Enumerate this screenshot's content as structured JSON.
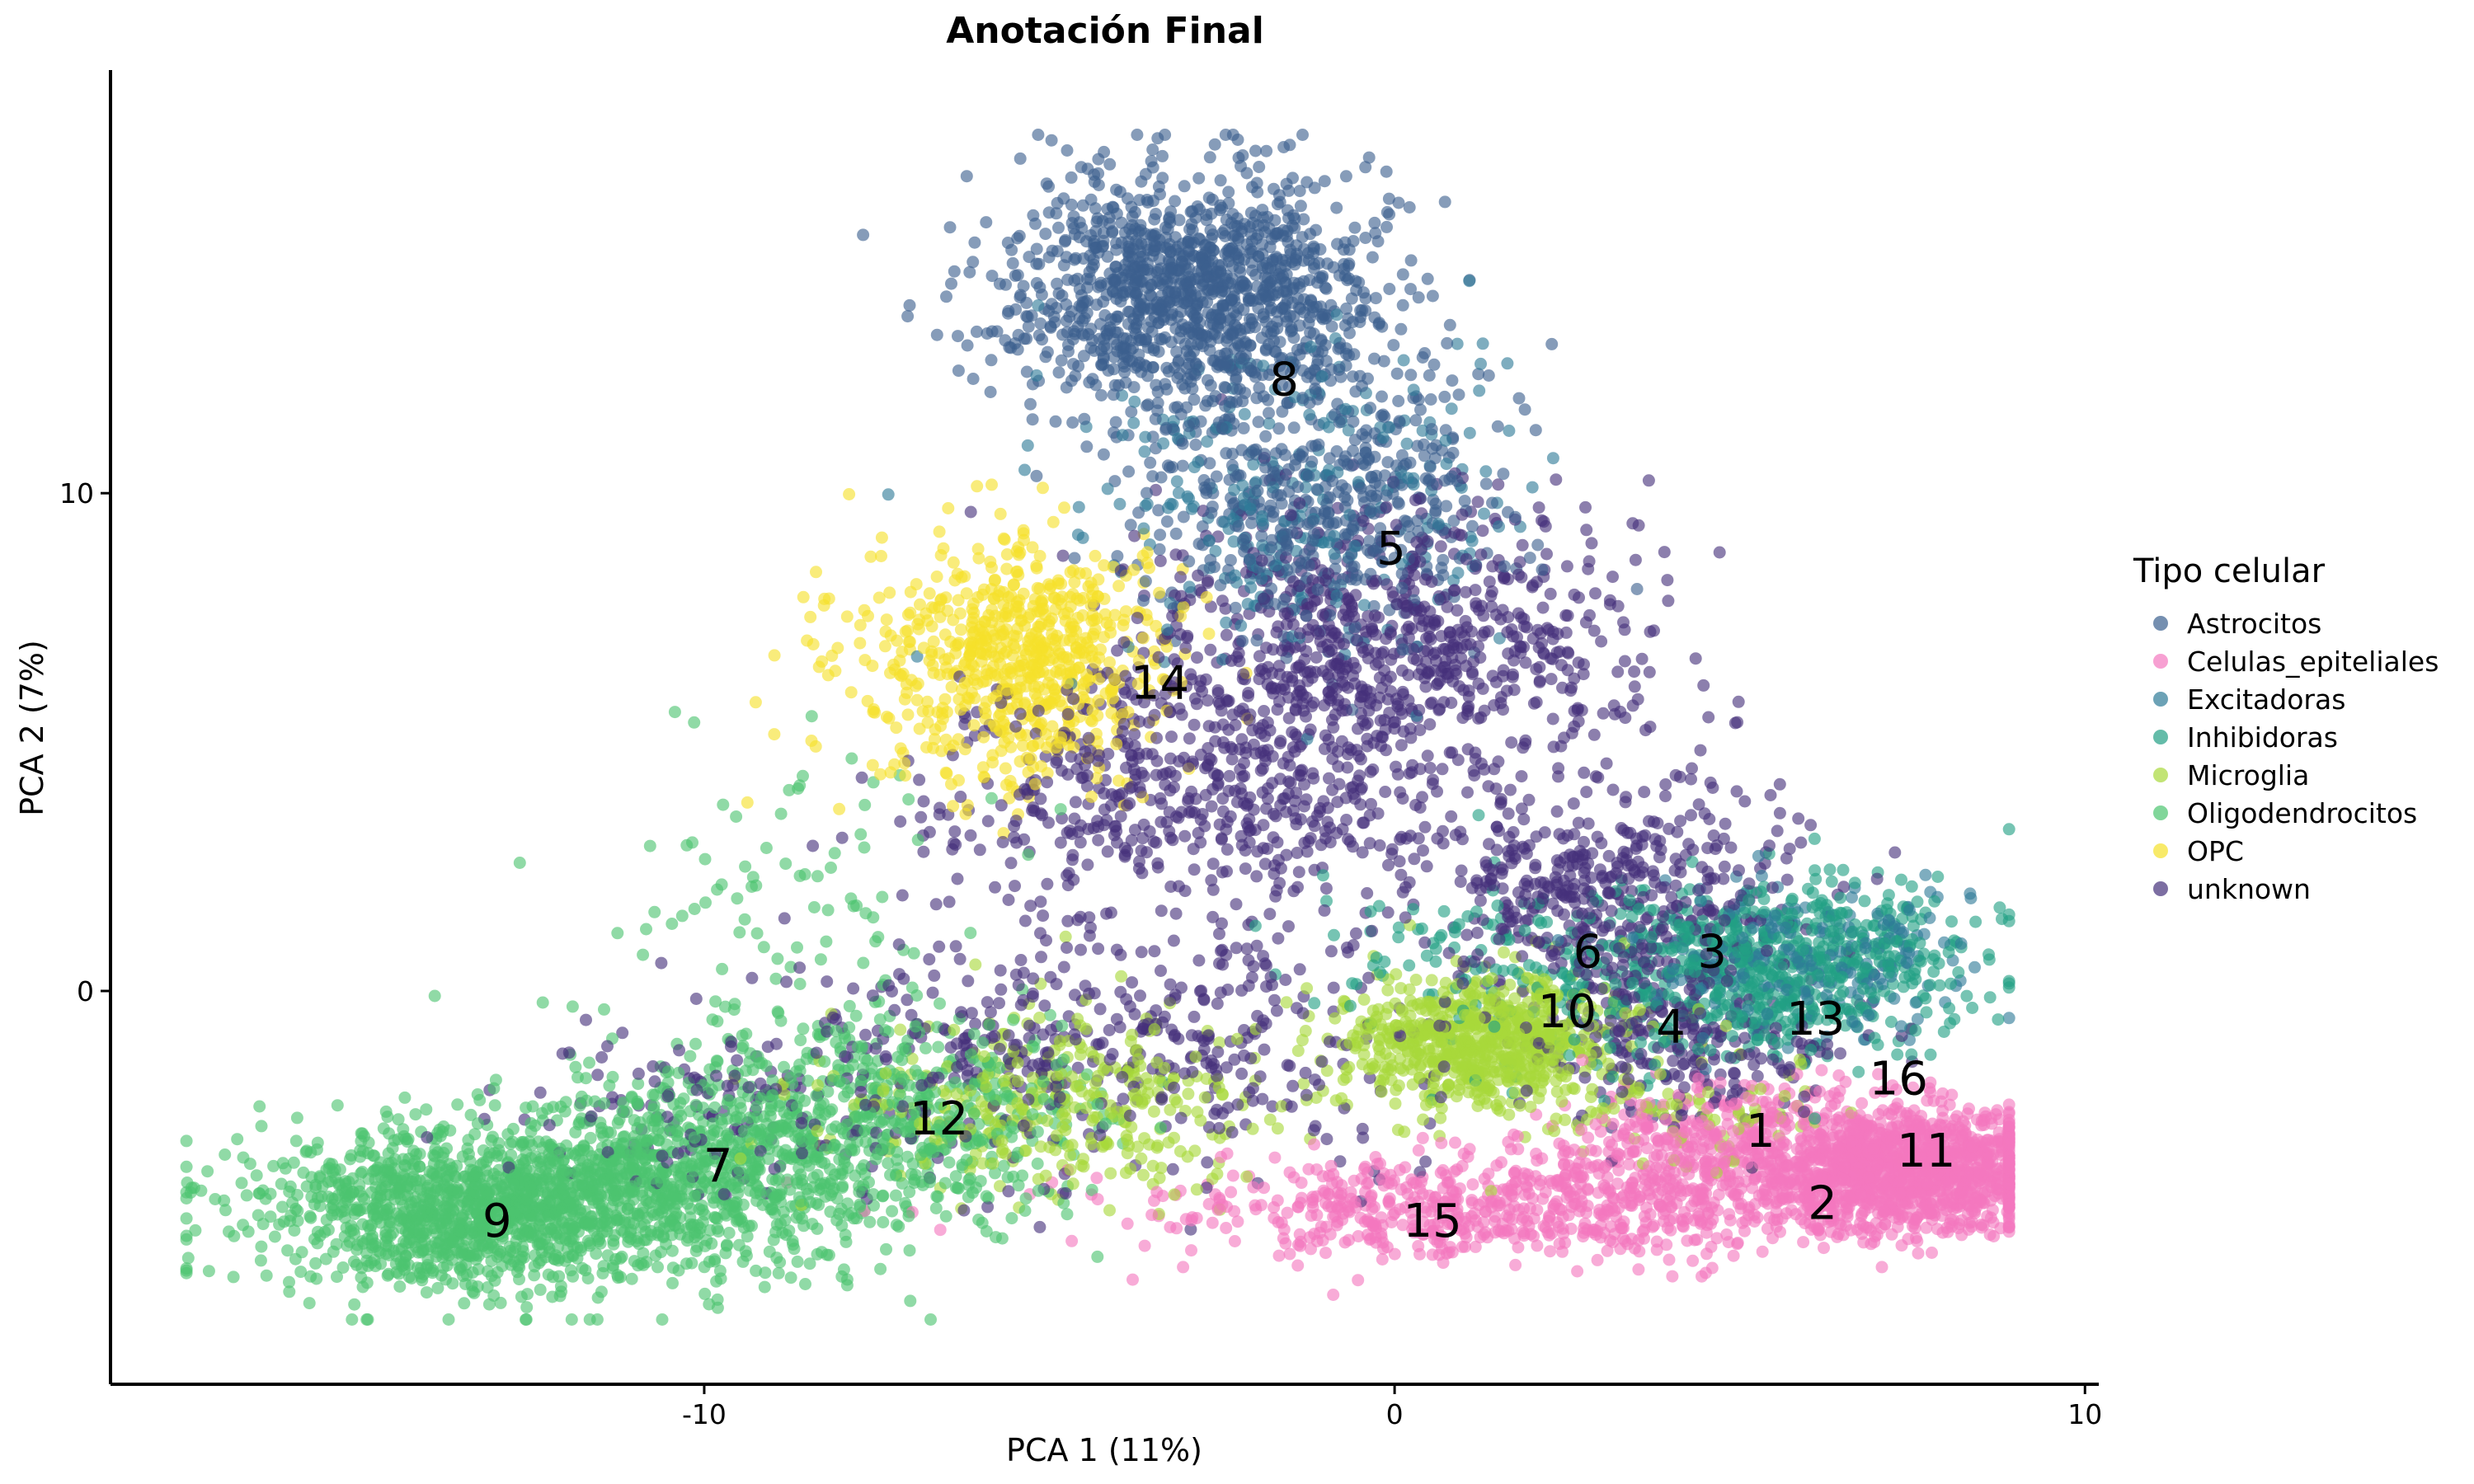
{
  "chart_data": {
    "type": "scatter",
    "title": "Anotación Final",
    "xlabel": "PCA 1 (11%)",
    "ylabel": "PCA 2 (7%)",
    "xlim": [
      -18.6,
      10.2
    ],
    "ylim": [
      -7.9,
      18.5
    ],
    "xticks": [
      -10,
      0,
      10
    ],
    "yticks": [
      0,
      10
    ],
    "xtick_labels": [
      "-10",
      "0",
      "10"
    ],
    "ytick_labels": [
      "0",
      "10"
    ],
    "grid": false,
    "legend": {
      "title": "Tipo celular",
      "position": "right"
    },
    "series": [
      {
        "name": "Astrocitos",
        "color": "#3B5F8E",
        "clusters": [
          {
            "center": [
              -3.0,
              14.0
            ],
            "sd": [
              1.3,
              1.2
            ],
            "n": 1200
          },
          {
            "center": [
              -1.0,
              10.0
            ],
            "sd": [
              1.3,
              1.5
            ],
            "n": 500
          }
        ]
      },
      {
        "name": "Celulas_epiteliales",
        "color": "#F478BF",
        "clusters": [
          {
            "center": [
              7.5,
              -3.6
            ],
            "sd": [
              1.0,
              0.6
            ],
            "n": 1100
          },
          {
            "center": [
              5.0,
              -3.3
            ],
            "sd": [
              1.5,
              0.7
            ],
            "n": 550
          },
          {
            "center": [
              1.5,
              -4.4
            ],
            "sd": [
              2.6,
              0.5
            ],
            "n": 650
          }
        ]
      },
      {
        "name": "Excitadoras",
        "color": "#2E7A97",
        "clusters": [
          {
            "center": [
              -1.5,
              9.8
            ],
            "sd": [
              1.6,
              1.6
            ],
            "n": 260
          },
          {
            "center": [
              6.0,
              0.6
            ],
            "sd": [
              1.2,
              0.8
            ],
            "n": 220
          }
        ]
      },
      {
        "name": "Inhibidoras",
        "color": "#22A085",
        "clusters": [
          {
            "center": [
              5.5,
              0.5
            ],
            "sd": [
              1.5,
              0.9
            ],
            "n": 650
          },
          {
            "center": [
              2.0,
              0.2
            ],
            "sd": [
              1.5,
              1.0
            ],
            "n": 150
          }
        ]
      },
      {
        "name": "Microglia",
        "color": "#A8D93A",
        "clusters": [
          {
            "center": [
              1.3,
              -1.0
            ],
            "sd": [
              1.0,
              0.7
            ],
            "n": 750
          },
          {
            "center": [
              -5.0,
              -2.3
            ],
            "sd": [
              1.6,
              0.9
            ],
            "n": 350
          },
          {
            "center": [
              4.5,
              -2.5
            ],
            "sd": [
              1.0,
              0.6
            ],
            "n": 80
          }
        ]
      },
      {
        "name": "Oligodendrocitos",
        "color": "#4CC46F",
        "clusters": [
          {
            "center": [
              -13.3,
              -4.4
            ],
            "sd": [
              1.6,
              0.8
            ],
            "n": 1300
          },
          {
            "center": [
              -10.0,
              -3.5
            ],
            "sd": [
              1.6,
              1.0
            ],
            "n": 800
          },
          {
            "center": [
              -7.0,
              -2.5
            ],
            "sd": [
              1.4,
              1.1
            ],
            "n": 450
          },
          {
            "center": [
              -9.0,
              1.5
            ],
            "sd": [
              1.5,
              1.6
            ],
            "n": 90
          }
        ]
      },
      {
        "name": "OPC",
        "color": "#F5E12A",
        "clusters": [
          {
            "center": [
              -5.3,
              6.7
            ],
            "sd": [
              1.0,
              1.2
            ],
            "n": 650
          },
          {
            "center": [
              -7.5,
              6.5
            ],
            "sd": [
              0.8,
              1.2
            ],
            "n": 60
          }
        ]
      },
      {
        "name": "unknown",
        "color": "#45307A",
        "clusters": [
          {
            "center": [
              0.0,
              7.0
            ],
            "sd": [
              1.9,
              1.5
            ],
            "n": 800
          },
          {
            "center": [
              -3.0,
              4.0
            ],
            "sd": [
              1.8,
              1.2
            ],
            "n": 500
          },
          {
            "center": [
              3.0,
              2.0
            ],
            "sd": [
              1.5,
              1.1
            ],
            "n": 450
          },
          {
            "center": [
              -4.0,
              -1.0
            ],
            "sd": [
              2.5,
              1.3
            ],
            "n": 450
          },
          {
            "center": [
              4.0,
              -1.0
            ],
            "sd": [
              1.2,
              0.8
            ],
            "n": 250
          },
          {
            "center": [
              -10.0,
              -2.5
            ],
            "sd": [
              1.5,
              0.8
            ],
            "n": 120
          }
        ]
      }
    ],
    "cluster_labels": [
      {
        "text": "8",
        "x": -1.6,
        "y": 12.3
      },
      {
        "text": "5",
        "x": -0.05,
        "y": 8.9
      },
      {
        "text": "14",
        "x": -3.4,
        "y": 6.2
      },
      {
        "text": "6",
        "x": 2.8,
        "y": 0.8
      },
      {
        "text": "3",
        "x": 4.6,
        "y": 0.8
      },
      {
        "text": "10",
        "x": 2.5,
        "y": -0.4
      },
      {
        "text": "4",
        "x": 4.0,
        "y": -0.7
      },
      {
        "text": "13",
        "x": 6.1,
        "y": -0.55
      },
      {
        "text": "16",
        "x": 7.3,
        "y": -1.75
      },
      {
        "text": "1",
        "x": 5.3,
        "y": -2.8
      },
      {
        "text": "11",
        "x": 7.7,
        "y": -3.2
      },
      {
        "text": "2",
        "x": 6.2,
        "y": -4.25
      },
      {
        "text": "12",
        "x": -6.6,
        "y": -2.55
      },
      {
        "text": "7",
        "x": -9.8,
        "y": -3.5
      },
      {
        "text": "15",
        "x": 0.55,
        "y": -4.6
      },
      {
        "text": "9",
        "x": -13.0,
        "y": -4.6
      }
    ]
  }
}
